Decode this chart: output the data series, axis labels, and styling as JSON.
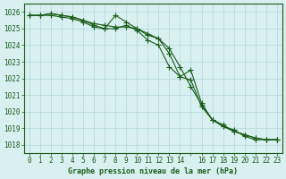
{
  "title": "Graphe pression niveau de la mer (hPa)",
  "bg_color": "#d8f0f0",
  "grid_color": "#b0d8d8",
  "line_color": "#1a5c1a",
  "marker_color": "#1a5c1a",
  "xlim": [
    -0.5,
    23.5
  ],
  "ylim": [
    1017.5,
    1026.5
  ],
  "yticks": [
    1018,
    1019,
    1020,
    1021,
    1022,
    1023,
    1024,
    1025,
    1026
  ],
  "xticks": [
    0,
    1,
    2,
    3,
    4,
    5,
    6,
    7,
    8,
    9,
    10,
    11,
    12,
    13,
    14,
    15,
    16,
    17,
    18,
    19,
    20,
    21,
    22,
    23
  ],
  "xtick_labels": [
    "0",
    "1",
    "2",
    "3",
    "4",
    "5",
    "6",
    "7",
    "8",
    "9",
    "10",
    "11",
    "12",
    "13",
    "14",
    "",
    "16",
    "17",
    "18",
    "19",
    "20",
    "21",
    "22",
    "23"
  ],
  "series1": [
    1025.8,
    1025.8,
    1025.9,
    1025.8,
    1025.7,
    1025.5,
    1025.2,
    1025.0,
    1025.8,
    1025.4,
    1025.0,
    1024.6,
    1024.4,
    1023.5,
    1022.1,
    1021.9,
    1020.3,
    1019.5,
    1019.1,
    1018.9,
    1018.5,
    1018.3,
    1018.3,
    1018.3
  ],
  "series2": [
    1025.8,
    1025.8,
    1025.9,
    1025.8,
    1025.7,
    1025.5,
    1025.3,
    1025.2,
    1025.1,
    1025.1,
    1025.0,
    1024.7,
    1024.4,
    1023.8,
    1022.7,
    1021.5,
    1020.4,
    1019.5,
    1019.2,
    1018.8,
    1018.6,
    1018.4,
    1018.3,
    1018.3
  ],
  "series3": [
    1025.8,
    1025.8,
    1025.8,
    1025.7,
    1025.6,
    1025.4,
    1025.1,
    1025.0,
    1025.0,
    1025.2,
    1024.9,
    1024.3,
    1024.0,
    1022.7,
    1022.1,
    1022.5,
    1020.5,
    1019.5,
    1019.1,
    1018.8,
    1018.6,
    1018.4,
    1018.3,
    1018.3
  ],
  "x_vals": [
    0,
    1,
    2,
    3,
    4,
    5,
    6,
    7,
    8,
    9,
    10,
    11,
    12,
    13,
    14,
    15,
    16,
    17,
    18,
    19,
    20,
    21,
    22,
    23
  ]
}
